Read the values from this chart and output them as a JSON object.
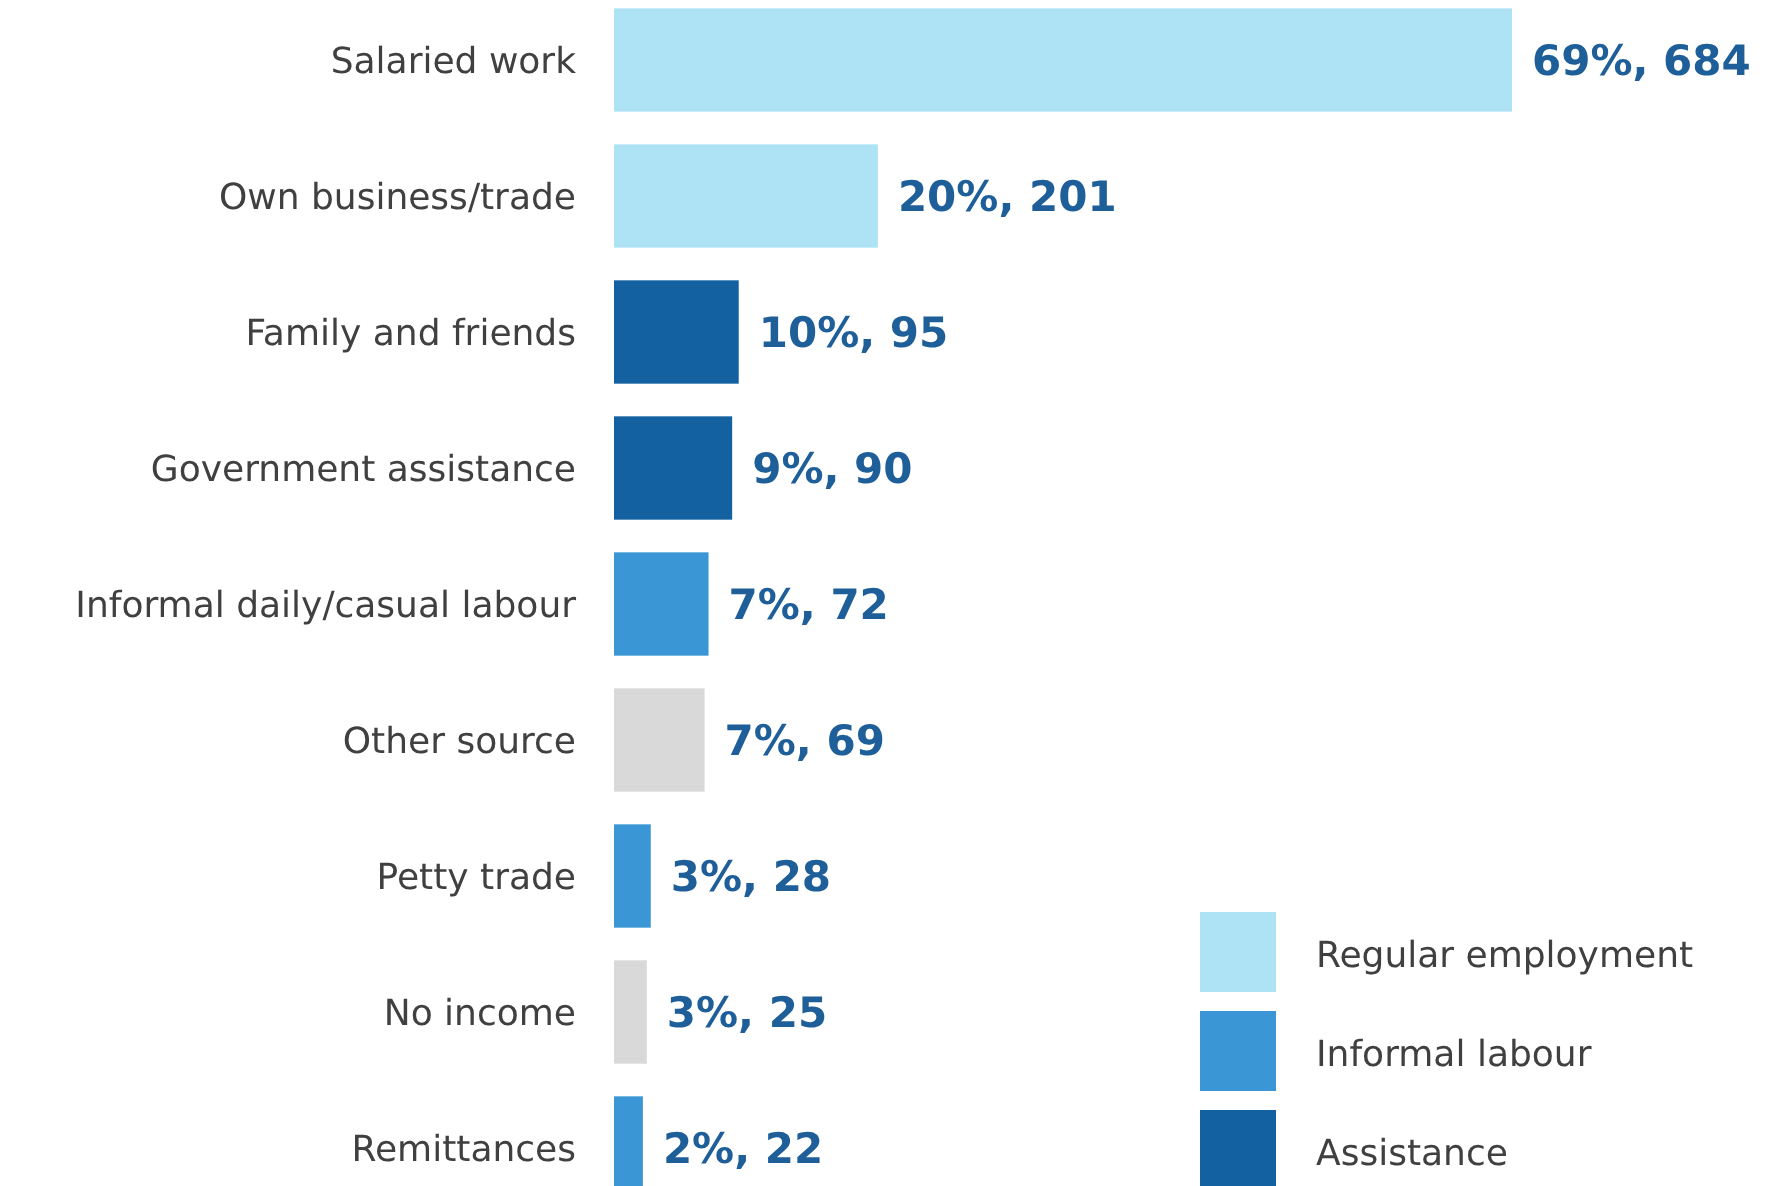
{
  "chart_data": {
    "type": "bar",
    "orientation": "horizontal",
    "legend": "bottom right",
    "categories": [
      "Salaried work",
      "Own business/trade",
      "Family and friends",
      "Government assistance",
      "Informal daily/casual labour",
      "Other source",
      "Petty trade",
      "No income",
      "Remittances"
    ],
    "series": [
      {
        "name": "Regular employment",
        "color": "#ade3f5",
        "values": [
          684,
          201,
          null,
          null,
          null,
          null,
          null,
          null,
          null
        ],
        "value_labels": [
          "69%, 684",
          "20%, 201",
          null,
          null,
          null,
          null,
          null,
          null,
          null
        ]
      },
      {
        "name": "Informal labour",
        "color": "#3a96d4",
        "values": [
          null,
          null,
          null,
          null,
          72,
          null,
          28,
          null,
          22
        ],
        "value_labels": [
          null,
          null,
          null,
          null,
          "7%, 72",
          null,
          "3%, 28",
          null,
          "2%, 22"
        ]
      },
      {
        "name": "Assistance",
        "color": "#1361a0",
        "values": [
          null,
          null,
          95,
          90,
          null,
          null,
          null,
          null,
          null
        ],
        "value_labels": [
          null,
          null,
          "10%, 95",
          "9%, 90",
          null,
          null,
          null,
          null,
          null
        ]
      },
      {
        "color": "#d9d9d9",
        "values": [
          null,
          null,
          null,
          null,
          null,
          69,
          null,
          25,
          null
        ],
        "value_labels": [
          null,
          null,
          null,
          null,
          null,
          "7%, 69",
          null,
          "3%, 25",
          null
        ]
      }
    ]
  }
}
